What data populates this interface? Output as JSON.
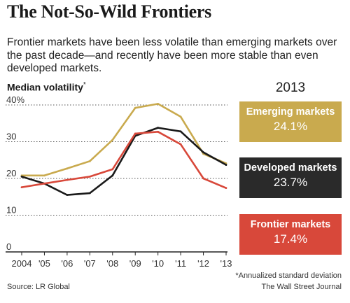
{
  "title": "The Not-So-Wild Frontiers",
  "subtitle": "Frontier markets have been less volatile than emerging markets over the past decade—and recently have been more stable than even developed markets.",
  "chart_title": "Median volatility",
  "chart_title_mark": "*",
  "summary_year": "2013",
  "footnote": "*Annualized standard deviation",
  "source": "Source: LR Global",
  "credit": "The Wall Street Journal",
  "chart_data": {
    "type": "line",
    "x": [
      2004,
      2005,
      2006,
      2007,
      2008,
      2009,
      2010,
      2011,
      2012,
      2013
    ],
    "xtick_labels": [
      "2004",
      "'05",
      "'06",
      "'07",
      "'08",
      "'09",
      "'10",
      "'11",
      "'12",
      "'13"
    ],
    "ytick_labels": [
      "40%",
      "30",
      "20",
      "10",
      "0"
    ],
    "yticks": [
      40,
      30,
      20,
      10,
      0
    ],
    "ylim": [
      0,
      40
    ],
    "grid": true,
    "series": [
      {
        "name": "Emerging markets",
        "color": "#c9aa4e",
        "values": [
          20.8,
          20.8,
          22.7,
          24.7,
          30.5,
          39.2,
          40.3,
          36.8,
          26.7,
          24.1
        ]
      },
      {
        "name": "Developed markets",
        "color": "#1a1a1a",
        "values": [
          20.5,
          18.6,
          15.5,
          16.0,
          20.8,
          31.6,
          33.8,
          32.8,
          27.1,
          23.7
        ]
      },
      {
        "name": "Frontier markets",
        "color": "#d8483a",
        "values": [
          17.6,
          18.6,
          19.6,
          20.5,
          22.5,
          32.2,
          32.7,
          29.3,
          20.0,
          17.4
        ]
      }
    ],
    "summary": [
      {
        "name": "Emerging markets",
        "value": "24.1%",
        "color": "#c9aa4e"
      },
      {
        "name": "Developed markets",
        "value": "23.7%",
        "color": "#2a2a2a"
      },
      {
        "name": "Frontier markets",
        "value": "17.4%",
        "color": "#d8483a"
      }
    ]
  }
}
